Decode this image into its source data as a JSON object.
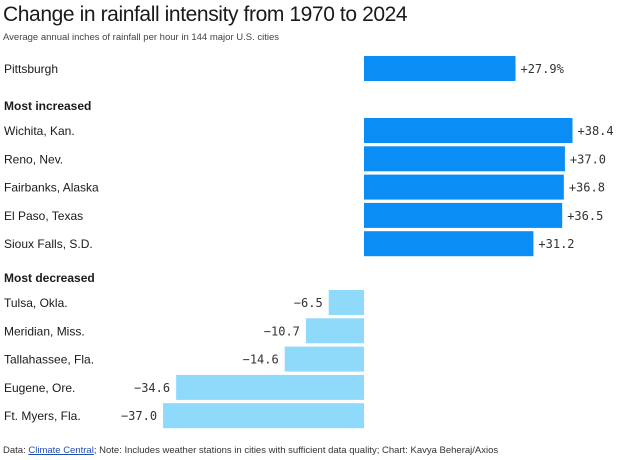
{
  "title": "Change in rainfall intensity from 1970 to 2024",
  "subtitle": "Average annual inches of rainfall per hour in 144 major U.S. cities",
  "footer": {
    "prefix": "Data: ",
    "source_link": "Climate Central",
    "rest": "; Note: Includes weather stations in cities with sufficient data quality; Chart: Kavya Beheraj/Axios"
  },
  "colors": {
    "increase": "#0a8df5",
    "decrease": "#8fd9fb"
  },
  "chart_data": {
    "type": "bar",
    "orientation": "horizontal",
    "unit": "%",
    "zero_baseline": true,
    "groups": [
      {
        "heading": "",
        "items": [
          {
            "label": "Pittsburgh",
            "value": 27.9,
            "display": "+27.9%"
          }
        ]
      },
      {
        "heading": "Most increased",
        "items": [
          {
            "label": "Wichita, Kan.",
            "value": 38.4,
            "display": "+38.4"
          },
          {
            "label": "Reno, Nev.",
            "value": 37.0,
            "display": "+37.0"
          },
          {
            "label": "Fairbanks, Alaska",
            "value": 36.8,
            "display": "+36.8"
          },
          {
            "label": "El Paso, Texas",
            "value": 36.5,
            "display": "+36.5"
          },
          {
            "label": "Sioux Falls, S.D.",
            "value": 31.2,
            "display": "+31.2"
          }
        ]
      },
      {
        "heading": "Most decreased",
        "items": [
          {
            "label": "Tulsa, Okla.",
            "value": -6.5,
            "display": "−6.5"
          },
          {
            "label": "Meridian, Miss.",
            "value": -10.7,
            "display": "−10.7"
          },
          {
            "label": "Tallahassee, Fla.",
            "value": -14.6,
            "display": "−14.6"
          },
          {
            "label": "Eugene, Ore.",
            "value": -34.6,
            "display": "−34.6"
          },
          {
            "label": "Ft. Myers, Fla.",
            "value": -37.0,
            "display": "−37.0"
          }
        ]
      }
    ]
  }
}
